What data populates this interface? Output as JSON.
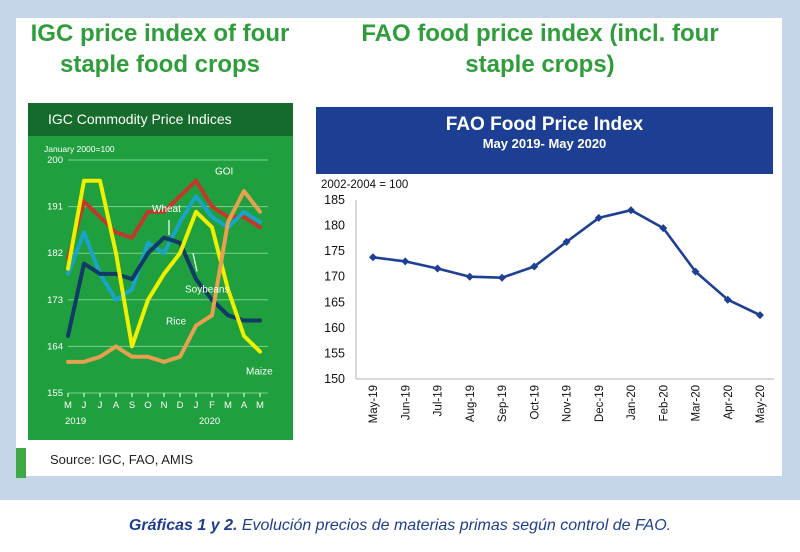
{
  "igc_heading": "IGC price index of four staple food crops",
  "fao_heading": "FAO food price index (incl. four staple crops)",
  "source": "Source: IGC, FAO, AMIS",
  "caption": {
    "bold": "Gráficas 1 y 2.",
    "text": "Evolución precios de materias primas según control de FAO."
  },
  "colors": {
    "frame": "#c6d4ea",
    "heading_green": "#2e9d3a",
    "igc_background": "#1f9f3d",
    "igc_titlebar": "#156b2b",
    "fao_banner": "#1c3f94",
    "fao_line": "#1e3f94",
    "caption": "#1d3d8f"
  },
  "chart_data": [
    {
      "type": "line",
      "title": "IGC Commodity Price Indices",
      "ylabel": "January 2000=100",
      "ylim": [
        155,
        200
      ],
      "yticks": [
        155,
        164,
        173,
        182,
        191,
        200
      ],
      "categories": [
        "M",
        "J",
        "J",
        "A",
        "S",
        "O",
        "N",
        "D",
        "J",
        "F",
        "M",
        "A",
        "M"
      ],
      "year_labels": [
        "2019",
        "2020"
      ],
      "grid": true,
      "series": [
        {
          "name": "GOI",
          "color": "#c0392b",
          "values": [
            181,
            192,
            189,
            186,
            185,
            190,
            190,
            193,
            196,
            191,
            189,
            189,
            187
          ]
        },
        {
          "name": "Wheat",
          "color": "#1aa3c9",
          "values": [
            178,
            186,
            178,
            173,
            175,
            184,
            182,
            188,
            193,
            189,
            187,
            190,
            188
          ]
        },
        {
          "name": "Soybeans",
          "color": "#123a66",
          "values": [
            166,
            180,
            178,
            178,
            177,
            182,
            185,
            184,
            177,
            173,
            170,
            169,
            169
          ]
        },
        {
          "name": "Rice",
          "color": "#eef000",
          "values": [
            179,
            196,
            196,
            182,
            164,
            173,
            178,
            182,
            190,
            187,
            175,
            166,
            163
          ]
        },
        {
          "name": "Maize",
          "color": "#e5a050",
          "values": [
            161,
            161,
            162,
            164,
            162,
            162,
            161,
            162,
            168,
            170,
            188,
            194,
            190
          ]
        }
      ],
      "annotations": [
        "GOI",
        "Wheat",
        "Soybeans",
        "Rice",
        "Maize"
      ]
    },
    {
      "type": "line",
      "title": "FAO Food Price Index",
      "subtitle": "May 2019- May 2020",
      "ylabel": "2002-2004 = 100",
      "ylim": [
        150,
        185
      ],
      "yticks": [
        150,
        155,
        160,
        165,
        170,
        175,
        180,
        185
      ],
      "categories": [
        "May-19",
        "Jun-19",
        "Jul-19",
        "Aug-19",
        "Sep-19",
        "Oct-19",
        "Nov-19",
        "Dec-19",
        "Jan-20",
        "Feb-20",
        "Mar-20",
        "Apr-20",
        "May-20"
      ],
      "series": [
        {
          "name": "",
          "values": [
            173.8,
            173.0,
            171.6,
            170.0,
            169.8,
            172.0,
            176.8,
            181.5,
            183.0,
            179.5,
            171.0,
            165.5,
            162.5
          ]
        }
      ]
    }
  ]
}
